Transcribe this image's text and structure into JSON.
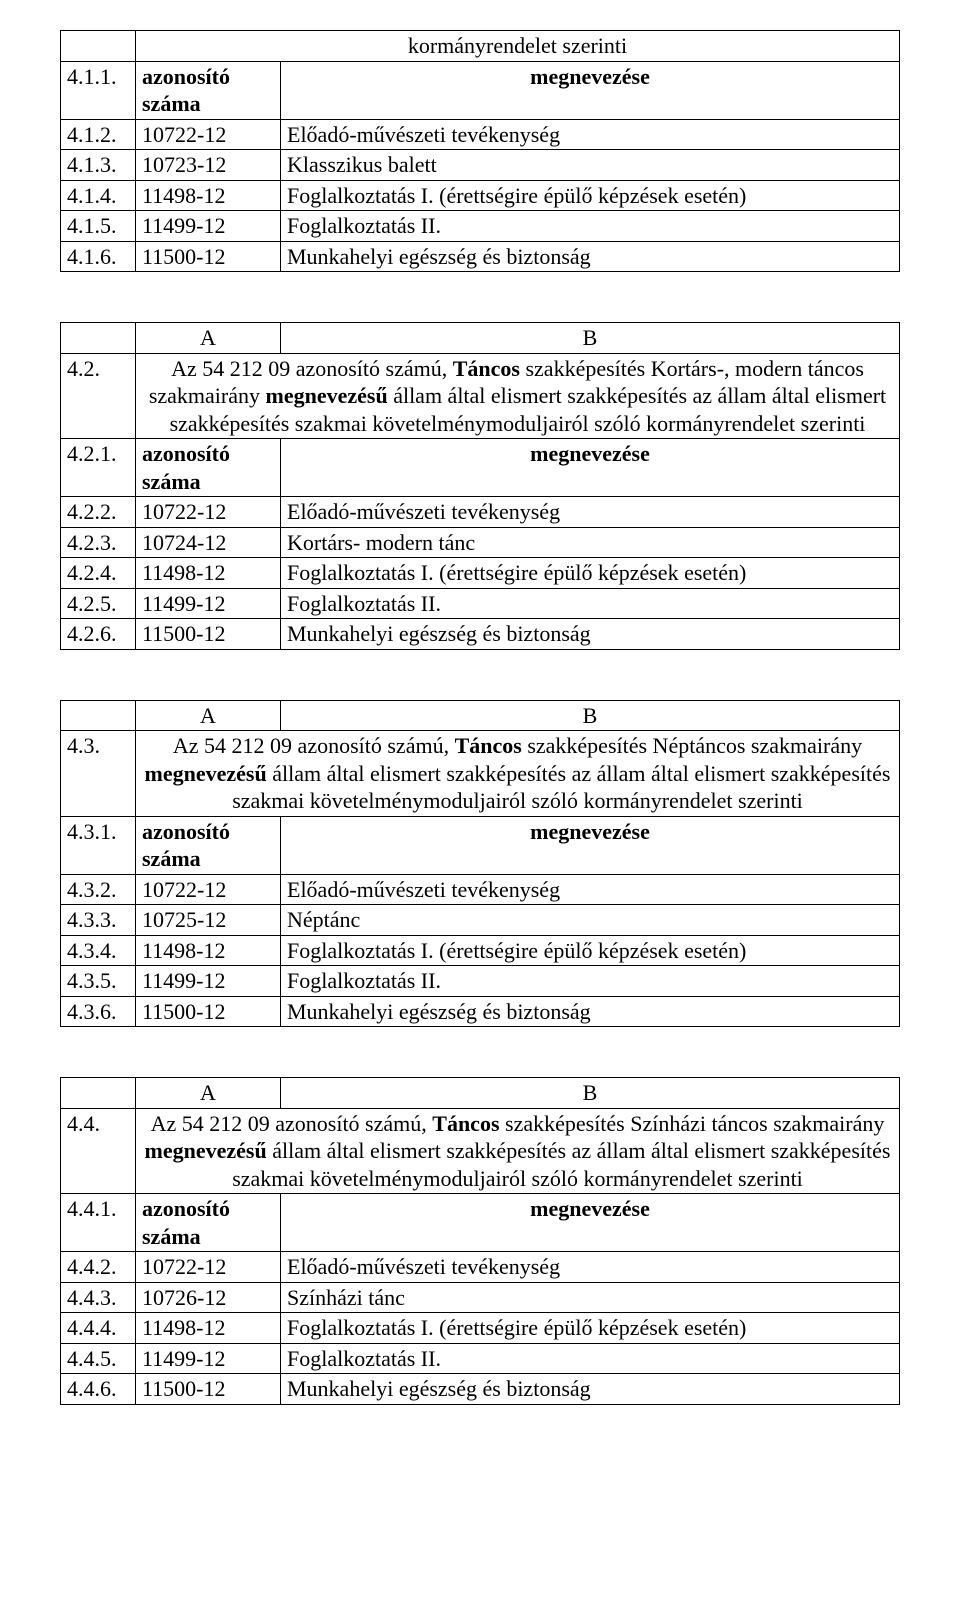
{
  "labels": {
    "header_line": "kormányrendelet szerinti",
    "azonosito": "azonosító",
    "szama": "száma",
    "megnevezese": "megnevezése",
    "A": "A",
    "B": "B"
  },
  "t1": {
    "r1": "4.1.1.",
    "rows": [
      {
        "n": "4.1.2.",
        "id": "10722-12",
        "desc": "Előadó-művészeti tevékenység"
      },
      {
        "n": "4.1.3.",
        "id": "10723-12",
        "desc": "Klasszikus balett"
      },
      {
        "n": "4.1.4.",
        "id": "11498-12",
        "desc": "Foglalkoztatás I. (érettségire épülő képzések esetén)"
      },
      {
        "n": "4.1.5.",
        "id": "11499-12",
        "desc": "Foglalkoztatás II."
      },
      {
        "n": "4.1.6.",
        "id": "11500-12",
        "desc": "Munkahelyi egészség és biztonság"
      }
    ]
  },
  "t2": {
    "head_num": "4.2.",
    "head_pre": "Az 54 212 09 azonosító számú, ",
    "head_bold1": "Táncos",
    "head_mid": " szakképesítés Kortárs-, modern táncos szakmairány ",
    "head_bold2": "megnevezésű",
    "head_post": " állam által elismert szakképesítés az állam által elismert szakképesítés szakmai követelménymoduljairól szóló kormányrendelet szerinti",
    "r1": "4.2.1.",
    "rows": [
      {
        "n": "4.2.2.",
        "id": "10722-12",
        "desc": "Előadó-művészeti tevékenység"
      },
      {
        "n": "4.2.3.",
        "id": "10724-12",
        "desc": "Kortárs- modern tánc"
      },
      {
        "n": "4.2.4.",
        "id": "11498-12",
        "desc": "Foglalkoztatás I. (érettségire épülő képzések esetén)"
      },
      {
        "n": "4.2.5.",
        "id": "11499-12",
        "desc": "Foglalkoztatás II."
      },
      {
        "n": "4.2.6.",
        "id": "11500-12",
        "desc": "Munkahelyi egészség és biztonság"
      }
    ]
  },
  "t3": {
    "head_num": "4.3.",
    "head_pre": "Az 54 212 09 azonosító számú, ",
    "head_bold1": "Táncos",
    "head_mid": " szakképesítés Néptáncos szakmairány ",
    "head_bold2": "megnevezésű",
    "head_post": " állam által elismert szakképesítés az állam által elismert szakképesítés szakmai követelménymoduljairól szóló kormányrendelet szerinti",
    "r1": "4.3.1.",
    "rows": [
      {
        "n": "4.3.2.",
        "id": "10722-12",
        "desc": "Előadó-művészeti tevékenység"
      },
      {
        "n": "4.3.3.",
        "id": "10725-12",
        "desc": "Néptánc"
      },
      {
        "n": "4.3.4.",
        "id": "11498-12",
        "desc": "Foglalkoztatás I. (érettségire épülő képzések esetén)"
      },
      {
        "n": "4.3.5.",
        "id": "11499-12",
        "desc": "Foglalkoztatás II."
      },
      {
        "n": "4.3.6.",
        "id": "11500-12",
        "desc": "Munkahelyi egészség és biztonság"
      }
    ]
  },
  "t4": {
    "head_num": "4.4.",
    "head_pre": "Az 54 212 09 azonosító számú, ",
    "head_bold1": "Táncos",
    "head_mid": " szakképesítés Színházi táncos szakmairány ",
    "head_bold2": "megnevezésű",
    "head_post": " állam által elismert szakképesítés az állam által elismert szakképesítés szakmai követelménymoduljairól szóló kormányrendelet szerinti",
    "r1": "4.4.1.",
    "rows": [
      {
        "n": "4.4.2.",
        "id": "10722-12",
        "desc": "Előadó-művészeti tevékenység"
      },
      {
        "n": "4.4.3.",
        "id": "10726-12",
        "desc": "Színházi tánc"
      },
      {
        "n": "4.4.4.",
        "id": "11498-12",
        "desc": "Foglalkoztatás I. (érettségire épülő képzések esetén)"
      },
      {
        "n": "4.4.5.",
        "id": "11499-12",
        "desc": "Foglalkoztatás II."
      },
      {
        "n": "4.4.6.",
        "id": "11500-12",
        "desc": "Munkahelyi egészség és biztonság"
      }
    ]
  }
}
